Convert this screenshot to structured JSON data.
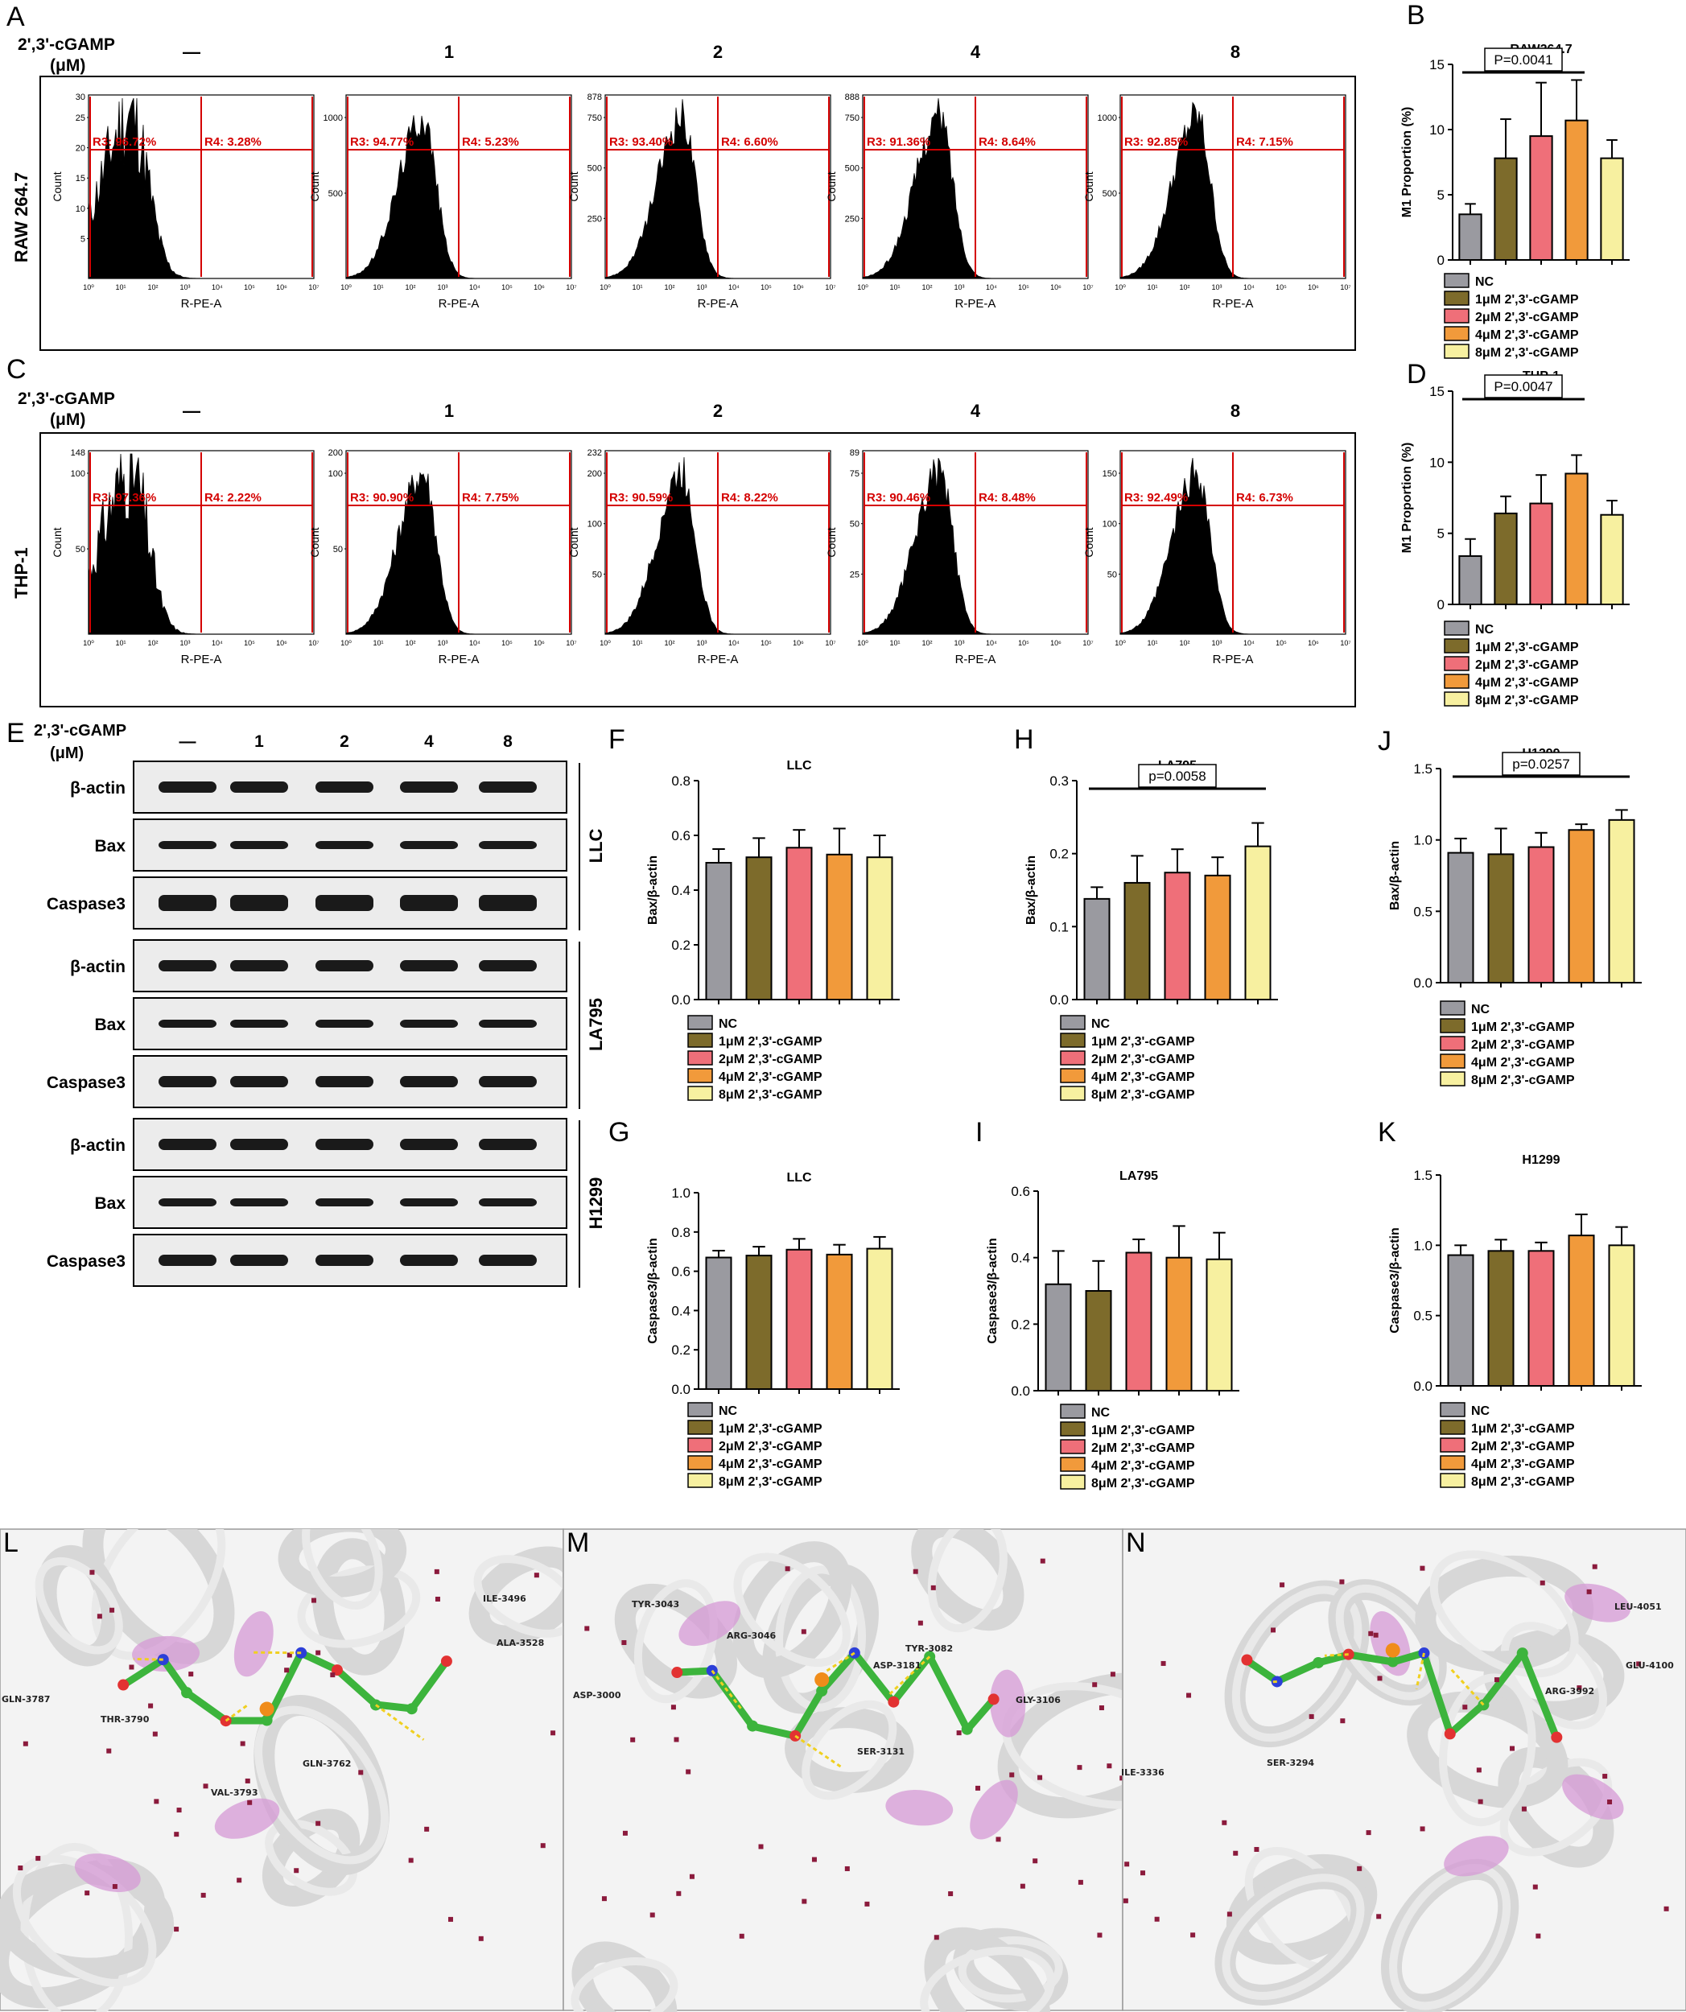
{
  "colors": {
    "NC": "#9a9aa0",
    "1uM": "#7d6b2b",
    "2uM": "#ef6f79",
    "4uM": "#f19a3b",
    "8uM": "#f7f0a0",
    "gate": "#d40000"
  },
  "legend": [
    "NC",
    "1μM 2',3'-cGAMP",
    "2μM 2',3'-cGAMP",
    "4μM 2',3'-cGAMP",
    "8μM 2',3'-cGAMP"
  ],
  "legend_short": [
    "NC",
    "1μM 2',3'-cGAMP",
    "2μM 2',3'-cGAMP",
    "4μM 2',3'-cGAMP",
    "8μM 2',3'-cGAMP"
  ],
  "treatment_header": "2',3'-cGAMP",
  "unit_header": "(μM)",
  "doses": [
    "—",
    "1",
    "2",
    "4",
    "8"
  ],
  "flow_xlabel": "R-PE-A",
  "flow_ylabel": "Count",
  "flow_ticks_x": [
    "10⁰",
    "10¹",
    "10²",
    "10³",
    "10⁴",
    "10⁵",
    "10⁶",
    "10⁷"
  ],
  "panel_A": {
    "letter": "A",
    "cell_line": "RAW 264.7",
    "plots": [
      {
        "ymax": "30",
        "yticks": [
          "25",
          "20",
          "15",
          "10",
          "5"
        ],
        "r3": "R3: 96.72%",
        "r4": "R4: 3.28%"
      },
      {
        "ymax": "",
        "yticks": [
          "1000",
          "500"
        ],
        "r3": "R3: 94.77%",
        "r4": "R4: 5.23%"
      },
      {
        "ymax": "878",
        "yticks": [
          "750",
          "500",
          "250"
        ],
        "r3": "R3: 93.40%",
        "r4": "R4: 6.60%"
      },
      {
        "ymax": "888",
        "yticks": [
          "750",
          "500",
          "250"
        ],
        "r3": "R3: 91.36%",
        "r4": "R4: 8.64%"
      },
      {
        "ymax": "",
        "yticks": [
          "1000",
          "500"
        ],
        "r3": "R3: 92.85%",
        "r4": "R4: 7.15%"
      }
    ]
  },
  "panel_C": {
    "letter": "C",
    "cell_line": "THP-1",
    "plots": [
      {
        "ymax": "148",
        "yticks": [
          "100",
          "50"
        ],
        "r3": "R3: 97.36%",
        "r4": "R4: 2.22%"
      },
      {
        "ymax": "200",
        "yticks": [
          "100",
          "50"
        ],
        "r3": "R3: 90.90%",
        "r4": "R4: 7.75%"
      },
      {
        "ymax": "232",
        "yticks": [
          "200",
          "100",
          "50"
        ],
        "r3": "R3: 90.59%",
        "r4": "R4: 8.22%"
      },
      {
        "ymax": "89",
        "yticks": [
          "75",
          "50",
          "25"
        ],
        "r3": "R3: 90.46%",
        "r4": "R4: 8.48%"
      },
      {
        "ymax": "",
        "yticks": [
          "150",
          "100",
          "50"
        ],
        "r3": "R3: 92.49%",
        "r4": "R4: 6.73%"
      }
    ]
  },
  "panel_E": {
    "letter": "E",
    "groups": [
      {
        "name": "LLC",
        "rows": [
          "β-actin",
          "Bax",
          "Caspase3"
        ]
      },
      {
        "name": "LA795",
        "rows": [
          "β-actin",
          "Bax",
          "Caspase3"
        ]
      },
      {
        "name": "H1299",
        "rows": [
          "β-actin",
          "Bax",
          "Caspase3"
        ]
      }
    ]
  },
  "chart_data": [
    {
      "panel": "B",
      "type": "bar",
      "title": "RAW264.7",
      "ylabel": "M1 Proportion (%)",
      "ylim": [
        0,
        15
      ],
      "yticks": [
        "0",
        "5",
        "10",
        "15"
      ],
      "categories": [
        "NC",
        "1μM 2',3'-cGAMP",
        "2μM 2',3'-cGAMP",
        "4μM 2',3'-cGAMP",
        "8μM 2',3'-cGAMP"
      ],
      "values": [
        3.5,
        7.8,
        9.5,
        10.7,
        7.8
      ],
      "errors": [
        0.8,
        3.0,
        4.1,
        3.1,
        1.4
      ],
      "annotation": "P=0.0041",
      "bracket": [
        0,
        3
      ]
    },
    {
      "panel": "D",
      "type": "bar",
      "title": "THP-1",
      "ylabel": "M1 Proportion (%)",
      "ylim": [
        0,
        15
      ],
      "yticks": [
        "0",
        "5",
        "10",
        "15"
      ],
      "categories": [
        "NC",
        "1μM 2',3'-cGAMP",
        "2μM 2',3'-cGAMP",
        "4μM 2',3'-cGAMP",
        "8μM 2',3'-cGAMP"
      ],
      "values": [
        3.4,
        6.4,
        7.1,
        9.2,
        6.3
      ],
      "errors": [
        1.2,
        1.2,
        2.0,
        1.3,
        1.0
      ],
      "annotation": "P=0.0047",
      "bracket": [
        0,
        3
      ]
    },
    {
      "panel": "F",
      "type": "bar",
      "title": "LLC",
      "ylabel": "Bax/β-actin",
      "ylim": [
        0,
        0.8
      ],
      "yticks": [
        "0.0",
        "0.2",
        "0.4",
        "0.6",
        "0.8"
      ],
      "categories": [
        "NC",
        "1μM 2',3'-cGAMP",
        "2μM 2',3'-cGAMP",
        "4μM 2',3'-cGAMP",
        "8μM 2',3'-cGAMP"
      ],
      "values": [
        0.5,
        0.52,
        0.555,
        0.53,
        0.52
      ],
      "errors": [
        0.05,
        0.07,
        0.065,
        0.095,
        0.08
      ],
      "annotation": "",
      "bracket": null
    },
    {
      "panel": "H",
      "type": "bar",
      "title": "LA795",
      "ylabel": "Bax/β-actin",
      "ylim": [
        0,
        0.3
      ],
      "yticks": [
        "0.0",
        "0.1",
        "0.2",
        "0.3"
      ],
      "categories": [
        "NC",
        "1μM 2',3'-cGAMP",
        "2μM 2',3'-cGAMP",
        "4μM 2',3'-cGAMP",
        "8μM 2',3'-cGAMP"
      ],
      "values": [
        0.138,
        0.16,
        0.174,
        0.17,
        0.21
      ],
      "errors": [
        0.016,
        0.037,
        0.032,
        0.025,
        0.032
      ],
      "annotation": "p=0.0058",
      "bracket": [
        0,
        4
      ]
    },
    {
      "panel": "J",
      "type": "bar",
      "title": "H1299",
      "ylabel": "Bax/β-actin",
      "ylim": [
        0,
        1.5
      ],
      "yticks": [
        "0.0",
        "0.5",
        "1.0",
        "1.5"
      ],
      "categories": [
        "NC",
        "1μM 2',3'-cGAMP",
        "2μM 2',3'-cGAMP",
        "4μM 2',3'-cGAMP",
        "8μM 2',3'-cGAMP"
      ],
      "values": [
        0.91,
        0.9,
        0.95,
        1.07,
        1.14
      ],
      "errors": [
        0.1,
        0.18,
        0.1,
        0.04,
        0.07
      ],
      "annotation": "p=0.0257",
      "bracket": [
        0,
        4
      ]
    },
    {
      "panel": "G",
      "type": "bar",
      "title": "LLC",
      "ylabel": "Caspase3/β-actin",
      "ylim": [
        0,
        1.0
      ],
      "yticks": [
        "0.0",
        "0.2",
        "0.4",
        "0.6",
        "0.8",
        "1.0"
      ],
      "categories": [
        "NC",
        "1μM 2',3'-cGAMP",
        "2μM 2',3'-cGAMP",
        "4μM 2',3'-cGAMP",
        "8μM 2',3'-cGAMP"
      ],
      "values": [
        0.67,
        0.68,
        0.71,
        0.685,
        0.715
      ],
      "errors": [
        0.035,
        0.045,
        0.055,
        0.05,
        0.06
      ],
      "annotation": "",
      "bracket": null
    },
    {
      "panel": "I",
      "type": "bar",
      "title": "LA795",
      "ylabel": "Caspase3/β-actin",
      "ylim": [
        0,
        0.6
      ],
      "yticks": [
        "0.0",
        "0.2",
        "0.4",
        "0.6"
      ],
      "categories": [
        "NC",
        "1μM 2',3'-cGAMP",
        "2μM 2',3'-cGAMP",
        "4μM 2',3'-cGAMP",
        "8μM 2',3'-cGAMP"
      ],
      "values": [
        0.32,
        0.3,
        0.415,
        0.4,
        0.395
      ],
      "errors": [
        0.1,
        0.09,
        0.04,
        0.095,
        0.08
      ],
      "annotation": "",
      "bracket": null
    },
    {
      "panel": "K",
      "type": "bar",
      "title": "H1299",
      "ylabel": "Caspase3/β-actin",
      "ylim": [
        0,
        1.5
      ],
      "yticks": [
        "0.0",
        "0.5",
        "1.0",
        "1.5"
      ],
      "categories": [
        "NC",
        "1μM 2',3'-cGAMP",
        "2μM 2',3'-cGAMP",
        "4μM 2',3'-cGAMP",
        "8μM 2',3'-cGAMP"
      ],
      "values": [
        0.93,
        0.96,
        0.96,
        1.07,
        1.0
      ],
      "errors": [
        0.07,
        0.08,
        0.06,
        0.15,
        0.13
      ],
      "annotation": "",
      "bracket": null
    }
  ],
  "docking": [
    {
      "letter": "L",
      "residues": [
        "ILE-3496",
        "ALA-3528",
        "GLN-3787",
        "THR-3790",
        "GLN-3762",
        "VAL-3793"
      ]
    },
    {
      "letter": "M",
      "residues": [
        "TYR-3043",
        "ARG-3046",
        "TYR-3082",
        "ASP-3181",
        "ASP-3000",
        "GLY-3106",
        "SER-3131"
      ]
    },
    {
      "letter": "N",
      "residues": [
        "LEU-4051",
        "GLU-4100",
        "ARG-3992",
        "SER-3294",
        "ILE-3336"
      ]
    }
  ]
}
